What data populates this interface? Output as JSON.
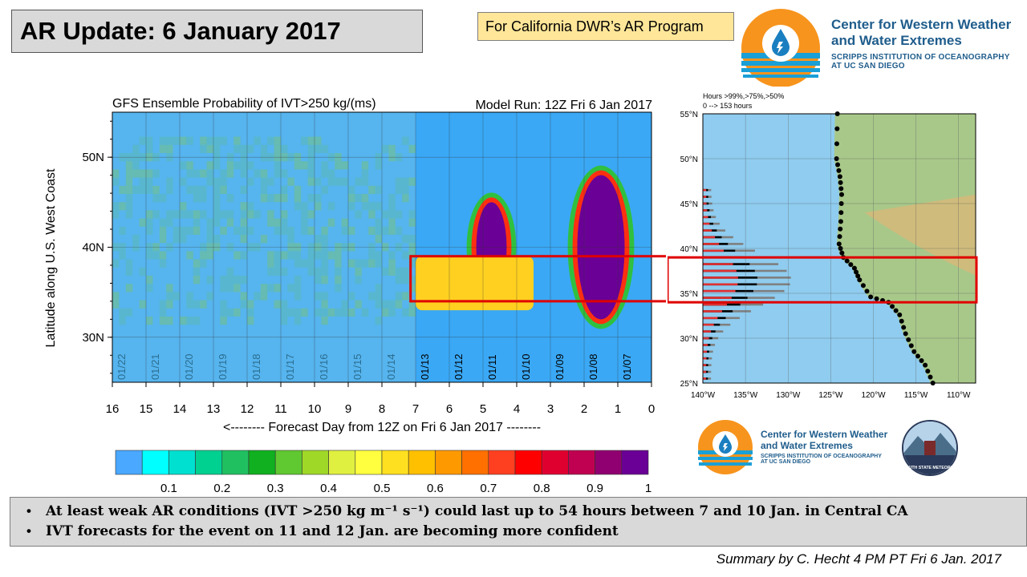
{
  "header": {
    "title": "AR Update: 6 January 2017",
    "program_label": "For California DWR’s AR Program"
  },
  "logo_top": {
    "line1": "Center for Western Weather",
    "line2": "and Water Extremes",
    "sub1": "SCRIPPS INSTITUTION OF OCEANOGRAPHY",
    "sub2": "AT UC SAN DIEGO"
  },
  "logo_bottom": {
    "line1": "Center for Western Weather",
    "line2": "and Water Extremes",
    "sub1": "SCRIPPS INSTITUTION OF OCEANOGRAPHY",
    "sub2": "AT UC SAN DIEGO",
    "partner": "PLYMOUTH STATE METEOROLOGY"
  },
  "chart_data": [
    {
      "type": "heatmap",
      "title": "GFS Ensemble Probability of IVT>250 kg/(ms)",
      "subtitle": "Model Run: 12Z Fri 6 Jan 2017",
      "xlabel": "<-------- Forecast Day from 12Z on Fri 6 Jan 2017 --------",
      "ylabel": "Latitude along U.S. West Coast",
      "xlim": [
        16,
        0
      ],
      "x_ticks": [
        "16",
        "15",
        "14",
        "13",
        "12",
        "11",
        "10",
        "9",
        "8",
        "7",
        "6",
        "5",
        "4",
        "3",
        "2",
        "1",
        "0"
      ],
      "ylim": [
        25,
        55
      ],
      "y_ticks": [
        "30N",
        "40N",
        "50N"
      ],
      "date_labels": [
        "01/22",
        "01/21",
        "01/20",
        "01/19",
        "01/18",
        "01/17",
        "01/16",
        "01/15",
        "01/14",
        "01/13",
        "01/12",
        "01/11",
        "01/10",
        "01/09",
        "01/08",
        "01/07"
      ],
      "date_label_days": [
        15.5,
        14.5,
        13.5,
        12.5,
        11.5,
        10.5,
        9.5,
        8.5,
        7.5,
        6.5,
        5.5,
        4.5,
        3.5,
        2.5,
        1.5,
        0.5
      ],
      "regions": [
        {
          "level": 0.9,
          "days": [
            2.2,
            0.8
          ],
          "lat": [
            32,
            48
          ]
        },
        {
          "level": 0.9,
          "days": [
            5.2,
            4.3
          ],
          "lat": [
            35,
            45
          ]
        },
        {
          "level": 0.5,
          "days": [
            7.0,
            3.5
          ],
          "lat": [
            33,
            39
          ]
        }
      ],
      "highlight_lat": [
        34,
        39
      ],
      "colorbar": {
        "ticks": [
          "0.1",
          "0.2",
          "0.3",
          "0.4",
          "0.5",
          "0.6",
          "0.7",
          "0.8",
          "0.9",
          "1"
        ],
        "colors": [
          "#4aa8ff",
          "#00ffff",
          "#00e0d0",
          "#00d090",
          "#20c060",
          "#10b020",
          "#60c830",
          "#a0d828",
          "#e0f040",
          "#ffff40",
          "#ffe020",
          "#ffc000",
          "#ff9900",
          "#ff7000",
          "#ff4020",
          "#ff0000",
          "#e00030",
          "#c00050",
          "#900070",
          "#6a0096"
        ]
      }
    },
    {
      "type": "bar",
      "title": "Hours >99%,>75%,>50%",
      "subtitle": "0 --> 153 hours",
      "x_ticks": [
        "140°W",
        "135°W",
        "130°W",
        "125°W",
        "120°W",
        "115°W",
        "110°W"
      ],
      "y_ticks": [
        "25°N",
        "30°N",
        "35°N",
        "40°N",
        "45°N",
        "50°N",
        "55°N"
      ],
      "ylim": [
        25,
        55
      ],
      "highlight_lat": [
        34,
        39
      ]
    }
  ],
  "bullets": [
    "At least weak AR conditions (IVT >250 kg m⁻¹ s⁻¹) could last up to 54 hours between 7 and 10 Jan. in Central CA",
    "IVT forecasts for the event on 11 and 12 Jan. are becoming more confident"
  ],
  "credit": "Summary by C. Hecht 4 PM PT Fri 6 Jan. 2017"
}
